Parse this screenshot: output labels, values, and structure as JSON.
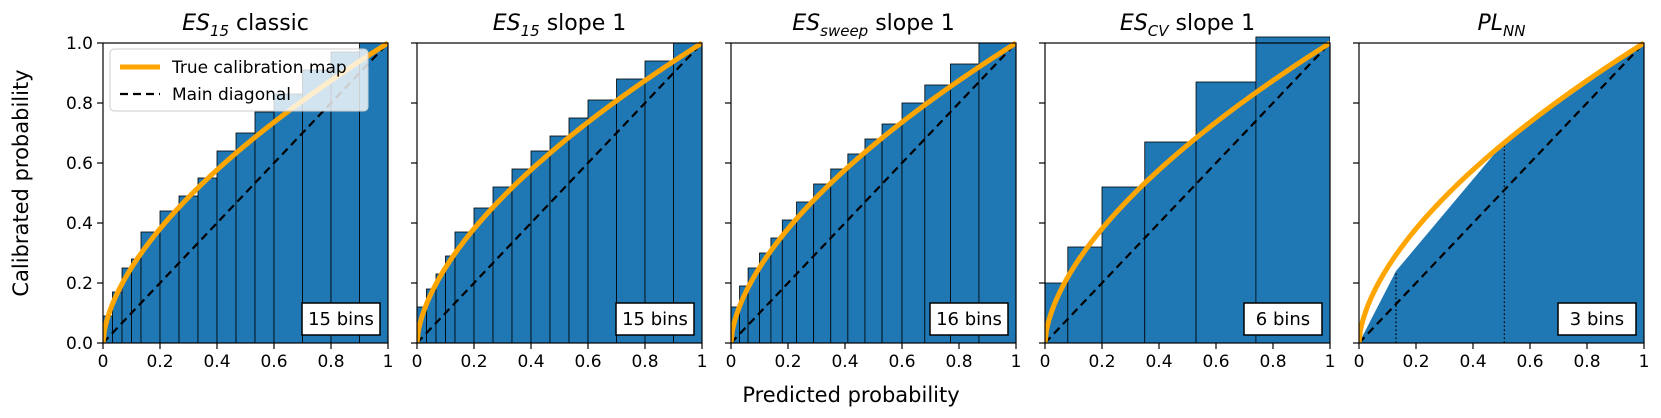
{
  "figure": {
    "xlabel": "Predicted probability",
    "ylabel": "Calibrated probability",
    "legend": {
      "position": "top-left of first panel",
      "entries": [
        {
          "label": "True calibration map",
          "color": "#FFA500",
          "style": "solid"
        },
        {
          "label": "Main diagonal",
          "color": "#000000",
          "style": "dashed"
        }
      ]
    }
  },
  "colors": {
    "bar_fill": "#1F77B4",
    "curve": "#FFA500",
    "diagonal": "#000000"
  },
  "chart_data": [
    {
      "type": "bar",
      "title": {
        "base": "ES",
        "sub": "15",
        "rest": " classic"
      },
      "bins_label": "15 bins",
      "xlim": [
        0,
        1
      ],
      "ylim": [
        0,
        1
      ],
      "xticks": [
        "0",
        "0.2",
        "0.4",
        "0.6",
        "0.8",
        "1"
      ],
      "yticks": [
        "0.0",
        "0.2",
        "0.4",
        "0.6",
        "0.8",
        "1.0"
      ],
      "show_yticklabels": true,
      "true_map_power": 0.6,
      "edges": [
        0,
        0.0333,
        0.0667,
        0.1,
        0.1333,
        0.2,
        0.2667,
        0.3333,
        0.4,
        0.4667,
        0.5333,
        0.6,
        0.7,
        0.8,
        0.9,
        1.0
      ],
      "values": [
        0.09,
        0.17,
        0.25,
        0.28,
        0.37,
        0.44,
        0.49,
        0.55,
        0.64,
        0.7,
        0.77,
        0.83,
        0.91,
        0.97,
        1.0
      ]
    },
    {
      "type": "bar",
      "title": {
        "base": "ES",
        "sub": "15",
        "rest": " slope 1"
      },
      "bins_label": "15 bins",
      "xlim": [
        0,
        1
      ],
      "ylim": [
        0,
        1
      ],
      "xticks": [
        "0",
        "0.2",
        "0.4",
        "0.6",
        "0.8",
        "1"
      ],
      "yticks": [
        "0.0",
        "0.2",
        "0.4",
        "0.6",
        "0.8",
        "1.0"
      ],
      "show_yticklabels": false,
      "true_map_power": 0.6,
      "edges": [
        0,
        0.0333,
        0.0667,
        0.1,
        0.1333,
        0.2,
        0.2667,
        0.3333,
        0.4,
        0.4667,
        0.5333,
        0.6,
        0.7,
        0.8,
        0.9,
        1.0
      ],
      "values": [
        0.12,
        0.18,
        0.23,
        0.29,
        0.37,
        0.45,
        0.52,
        0.58,
        0.64,
        0.69,
        0.75,
        0.81,
        0.88,
        0.94,
        1.0
      ]
    },
    {
      "type": "bar",
      "title": {
        "base": "ES",
        "sub": "sweep",
        "rest": " slope 1"
      },
      "bins_label": "16 bins",
      "xlim": [
        0,
        1
      ],
      "ylim": [
        0,
        1
      ],
      "xticks": [
        "0",
        "0.2",
        "0.4",
        "0.6",
        "0.8",
        "1"
      ],
      "yticks": [
        "0.0",
        "0.2",
        "0.4",
        "0.6",
        "0.8",
        "1.0"
      ],
      "show_yticklabels": false,
      "true_map_power": 0.6,
      "edges": [
        0,
        0.03,
        0.06,
        0.1,
        0.14,
        0.18,
        0.23,
        0.29,
        0.35,
        0.41,
        0.47,
        0.53,
        0.6,
        0.68,
        0.77,
        0.87,
        1.0
      ],
      "values": [
        0.12,
        0.19,
        0.25,
        0.3,
        0.35,
        0.41,
        0.47,
        0.53,
        0.58,
        0.63,
        0.68,
        0.73,
        0.8,
        0.86,
        0.93,
        1.0
      ]
    },
    {
      "type": "bar",
      "title": {
        "base": "ES",
        "sub": "CV",
        "rest": " slope 1"
      },
      "bins_label": "6 bins",
      "xlim": [
        0,
        1
      ],
      "ylim": [
        0,
        1
      ],
      "xticks": [
        "0",
        "0.2",
        "0.4",
        "0.6",
        "0.8",
        "1"
      ],
      "yticks": [
        "0.0",
        "0.2",
        "0.4",
        "0.6",
        "0.8",
        "1.0"
      ],
      "show_yticklabels": false,
      "true_map_power": 0.6,
      "edges": [
        0,
        0.08,
        0.2,
        0.35,
        0.53,
        0.74,
        1.0
      ],
      "values": [
        0.2,
        0.32,
        0.52,
        0.67,
        0.87,
        1.02
      ]
    },
    {
      "type": "bar",
      "title": {
        "base": "PL",
        "sub": "NN",
        "rest": ""
      },
      "bins_label": "3 bins",
      "xlim": [
        0,
        1
      ],
      "ylim": [
        0,
        1
      ],
      "xticks": [
        "0",
        "0.2",
        "0.4",
        "0.6",
        "0.8",
        "1"
      ],
      "yticks": [
        "0.0",
        "0.2",
        "0.4",
        "0.6",
        "0.8",
        "1.0"
      ],
      "show_yticklabels": false,
      "true_map_power": 0.6,
      "piecewise_linear": true,
      "edges": [
        0,
        0.13,
        0.51,
        1.0
      ],
      "knots_x": [
        0,
        0.13,
        0.51,
        1.0
      ],
      "knots_y": [
        0,
        0.24,
        0.67,
        1.0
      ]
    }
  ]
}
